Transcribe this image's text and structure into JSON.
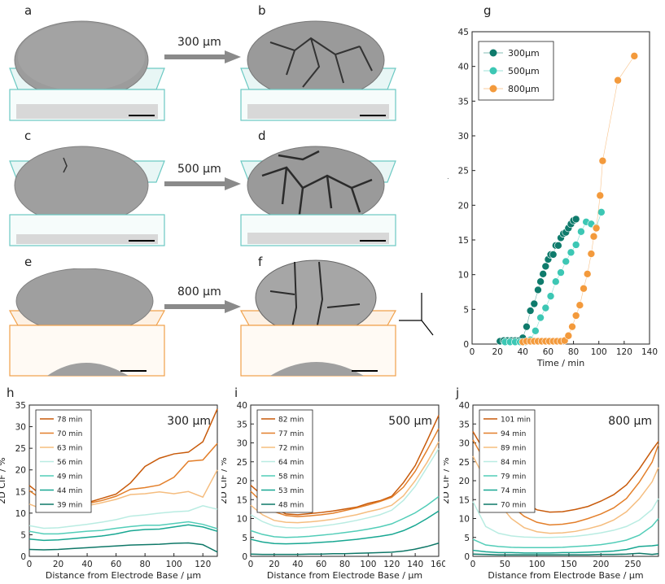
{
  "panels": {
    "a": "a",
    "b": "b",
    "c": "c",
    "d": "d",
    "e": "e",
    "f": "f",
    "g": "g",
    "h": "h",
    "i": "i",
    "j": "j"
  },
  "arrows": [
    "300 µm",
    "500 µm",
    "800 µm"
  ],
  "colors": {
    "teal_dark": "#0f7b6c",
    "teal_light": "#3cc7b4",
    "orange": "#f39a3c",
    "box_teal": "#6cc9c3",
    "box_orange": "#f0a04a",
    "grey": "#8a8a8a"
  },
  "chart_data": [
    {
      "id": "g",
      "type": "scatter",
      "xlabel": "Time / min",
      "ylabel": "3D CIF / %",
      "xlim": [
        0,
        140
      ],
      "ylim": [
        0,
        45
      ],
      "xticks": [
        0,
        20,
        40,
        60,
        80,
        100,
        120,
        140
      ],
      "yticks": [
        0,
        5,
        10,
        15,
        20,
        25,
        30,
        35,
        40,
        45
      ],
      "legend_position": "top-left",
      "series": [
        {
          "name": "300µm",
          "color": "#0f7b6c",
          "x": [
            22,
            25,
            28,
            31,
            34,
            37,
            40,
            43,
            46,
            49,
            52,
            54,
            56,
            58,
            60,
            62,
            64,
            66,
            68,
            70,
            72,
            74,
            76,
            78,
            80,
            82
          ],
          "y": [
            0.4,
            0.5,
            0.5,
            0.5,
            0.5,
            0.5,
            0.9,
            2.5,
            4.8,
            5.8,
            7.8,
            9.0,
            10.1,
            11.2,
            12.2,
            12.9,
            12.9,
            14.2,
            14.2,
            15.3,
            15.9,
            16.1,
            16.7,
            17.3,
            17.8,
            18.0
          ]
        },
        {
          "name": "500µm",
          "color": "#3cc7b4",
          "x": [
            26,
            30,
            34,
            38,
            42,
            46,
            50,
            54,
            58,
            62,
            66,
            70,
            74,
            78,
            82,
            86,
            90,
            94,
            98,
            102
          ],
          "y": [
            0.3,
            0.3,
            0.3,
            0.3,
            0.3,
            0.6,
            1.9,
            3.8,
            5.2,
            6.9,
            9.0,
            10.3,
            11.9,
            13.2,
            14.3,
            16.2,
            17.6,
            17.3,
            16.8,
            19.0
          ]
        },
        {
          "name": "800µm",
          "color": "#f39a3c",
          "x": [
            40,
            43,
            46,
            49,
            52,
            55,
            58,
            61,
            64,
            67,
            70,
            73,
            76,
            79,
            82,
            85,
            88,
            91,
            94,
            96,
            98,
            101,
            103,
            115,
            128
          ],
          "y": [
            0.3,
            0.4,
            0.4,
            0.4,
            0.4,
            0.4,
            0.4,
            0.4,
            0.4,
            0.4,
            0.4,
            0.5,
            1.2,
            2.5,
            4.1,
            5.6,
            8.0,
            10.1,
            13.0,
            15.5,
            16.7,
            21.4,
            26.4,
            38.0,
            41.5
          ]
        }
      ]
    },
    {
      "id": "h",
      "type": "line",
      "title": "300 µm",
      "xlabel": "Distance from Electrode Base / µm",
      "ylabel": "2D CIF / %",
      "xlim": [
        0,
        130
      ],
      "ylim": [
        0,
        35
      ],
      "xticks": [
        0,
        20,
        40,
        60,
        80,
        100,
        120
      ],
      "yticks": [
        0,
        5,
        10,
        15,
        20,
        25,
        30,
        35
      ],
      "x": [
        0,
        10,
        20,
        30,
        40,
        50,
        60,
        70,
        80,
        90,
        100,
        110,
        120,
        130
      ],
      "series": [
        {
          "name": "78 min",
          "color": "#c85a0a",
          "values": [
            16.4,
            13.7,
            11.7,
            11.9,
            12.4,
            13.4,
            14.4,
            17.0,
            20.8,
            22.7,
            23.7,
            24.1,
            26.5,
            34.1
          ]
        },
        {
          "name": "70 min",
          "color": "#e37f2a",
          "values": [
            15.2,
            12.9,
            11.6,
            11.8,
            12.2,
            12.9,
            13.9,
            15.5,
            15.9,
            16.5,
            18.3,
            22.0,
            22.3,
            26.1
          ]
        },
        {
          "name": "63 min",
          "color": "#f5bd7f",
          "values": [
            12.1,
            10.8,
            10.4,
            11.0,
            11.7,
            12.4,
            13.2,
            14.3,
            14.5,
            14.9,
            14.5,
            15.0,
            13.7,
            20.0
          ]
        },
        {
          "name": "56 min",
          "color": "#b9ece2",
          "values": [
            7.1,
            6.5,
            6.6,
            7.0,
            7.4,
            7.9,
            8.5,
            9.3,
            9.6,
            10.0,
            10.3,
            10.5,
            11.7,
            10.9
          ]
        },
        {
          "name": "49 min",
          "color": "#52cdb8",
          "values": [
            5.8,
            5.2,
            5.2,
            5.5,
            5.8,
            6.0,
            6.5,
            6.9,
            7.2,
            7.2,
            7.6,
            8.0,
            7.4,
            6.4
          ]
        },
        {
          "name": "44 min",
          "color": "#18a792",
          "values": [
            4.0,
            3.7,
            3.8,
            4.1,
            4.4,
            4.7,
            5.2,
            5.9,
            6.2,
            6.3,
            6.8,
            7.3,
            6.8,
            5.8
          ]
        },
        {
          "name": "39 min",
          "color": "#0f7868",
          "values": [
            1.6,
            1.5,
            1.6,
            1.8,
            2.0,
            2.2,
            2.4,
            2.6,
            2.7,
            2.8,
            3.0,
            3.1,
            2.7,
            1.0
          ]
        }
      ]
    },
    {
      "id": "i",
      "type": "line",
      "title": "500 µm",
      "xlabel": "Distance from Electrode Base / µm",
      "ylabel": "2D CIF / %",
      "xlim": [
        0,
        160
      ],
      "ylim": [
        0,
        40
      ],
      "xticks": [
        0,
        20,
        40,
        60,
        80,
        100,
        120,
        140,
        160
      ],
      "yticks": [
        0,
        5,
        10,
        15,
        20,
        25,
        30,
        35,
        40
      ],
      "x": [
        0,
        10,
        20,
        30,
        40,
        50,
        60,
        70,
        80,
        90,
        100,
        110,
        120,
        130,
        140,
        150,
        160
      ],
      "series": [
        {
          "name": "82 min",
          "color": "#c85a0a",
          "values": [
            18.8,
            16.1,
            12.8,
            11.2,
            11.0,
            11.3,
            11.6,
            12.0,
            12.5,
            13.0,
            14.0,
            14.7,
            15.9,
            19.5,
            24.0,
            30.5,
            37.3
          ]
        },
        {
          "name": "77 min",
          "color": "#e37f2a",
          "values": [
            17.2,
            14.2,
            11.8,
            10.8,
            10.5,
            10.7,
            11.0,
            11.4,
            12.1,
            12.8,
            13.6,
            14.5,
            15.6,
            18.3,
            22.5,
            28.0,
            33.8
          ]
        },
        {
          "name": "72 min",
          "color": "#f5bd7f",
          "values": [
            13.5,
            11.0,
            9.5,
            9.0,
            8.9,
            9.1,
            9.4,
            9.8,
            10.4,
            11.0,
            11.8,
            12.5,
            13.5,
            16.0,
            20.0,
            24.8,
            30.3
          ]
        },
        {
          "name": "64 min",
          "color": "#b9ece2",
          "values": [
            11.0,
            9.2,
            8.0,
            7.6,
            7.5,
            7.7,
            8.0,
            8.4,
            8.9,
            9.5,
            10.2,
            11.0,
            12.2,
            14.8,
            18.5,
            23.5,
            28.5
          ]
        },
        {
          "name": "58 min",
          "color": "#52cdb8",
          "values": [
            6.8,
            5.8,
            5.2,
            5.0,
            5.1,
            5.3,
            5.6,
            5.9,
            6.3,
            6.7,
            7.2,
            7.8,
            8.6,
            10.0,
            11.5,
            13.5,
            15.8
          ]
        },
        {
          "name": "53 min",
          "color": "#18a792",
          "values": [
            4.5,
            3.8,
            3.4,
            3.3,
            3.4,
            3.5,
            3.7,
            3.9,
            4.2,
            4.5,
            4.9,
            5.3,
            5.8,
            6.8,
            8.2,
            10.0,
            12.0
          ]
        },
        {
          "name": "48 min",
          "color": "#0f7868",
          "values": [
            0.6,
            0.5,
            0.5,
            0.5,
            0.5,
            0.6,
            0.6,
            0.7,
            0.7,
            0.8,
            0.9,
            1.0,
            1.1,
            1.4,
            1.9,
            2.6,
            3.5
          ]
        }
      ]
    },
    {
      "id": "j",
      "type": "line",
      "title": "800 µm",
      "xlabel": "Distance from Electrode Base / µm",
      "ylabel": "2D CIF / %",
      "xlim": [
        0,
        290
      ],
      "ylim": [
        0,
        40
      ],
      "xticks": [
        0,
        50,
        100,
        150,
        200,
        250
      ],
      "yticks": [
        0,
        5,
        10,
        15,
        20,
        25,
        30,
        35,
        40
      ],
      "x": [
        0,
        20,
        40,
        60,
        80,
        100,
        120,
        140,
        160,
        180,
        200,
        220,
        240,
        260,
        280,
        290
      ],
      "series": [
        {
          "name": "101 min",
          "color": "#c85a0a",
          "values": [
            33.0,
            27.2,
            22.5,
            17.4,
            14.3,
            12.3,
            11.7,
            11.8,
            12.4,
            13.2,
            14.6,
            16.3,
            18.9,
            23.1,
            28.1,
            30.4
          ]
        },
        {
          "name": "94 min",
          "color": "#e37f2a",
          "values": [
            30.8,
            24.8,
            18.3,
            13.4,
            10.6,
            9.0,
            8.3,
            8.5,
            9.0,
            10.0,
            11.2,
            12.8,
            15.3,
            19.6,
            24.9,
            29.6
          ]
        },
        {
          "name": "89 min",
          "color": "#f5bd7f",
          "values": [
            26.5,
            20.1,
            14.1,
            10.0,
            7.6,
            6.5,
            6.1,
            6.2,
            6.6,
            7.3,
            8.2,
            9.6,
            11.8,
            15.2,
            19.7,
            23.5
          ]
        },
        {
          "name": "84 min",
          "color": "#b9ece2",
          "values": [
            14.5,
            7.9,
            6.1,
            5.4,
            5.1,
            5.0,
            5.0,
            5.1,
            5.3,
            5.7,
            6.2,
            6.9,
            7.9,
            9.6,
            12.4,
            15.3
          ]
        },
        {
          "name": "79 min",
          "color": "#52cdb8",
          "values": [
            4.5,
            3.0,
            2.6,
            2.4,
            2.3,
            2.3,
            2.3,
            2.4,
            2.6,
            2.8,
            3.1,
            3.6,
            4.3,
            5.6,
            8.0,
            10.0
          ]
        },
        {
          "name": "74 min",
          "color": "#18a792",
          "values": [
            1.6,
            1.2,
            1.0,
            1.0,
            0.9,
            0.9,
            0.9,
            1.0,
            1.0,
            1.1,
            1.2,
            1.4,
            1.8,
            2.6,
            2.8,
            3.0
          ]
        },
        {
          "name": "70 min",
          "color": "#0f7868",
          "values": [
            0.6,
            0.5,
            0.4,
            0.4,
            0.4,
            0.4,
            0.4,
            0.4,
            0.4,
            0.4,
            0.5,
            0.5,
            0.6,
            0.8,
            0.5,
            0.7
          ]
        }
      ]
    }
  ]
}
